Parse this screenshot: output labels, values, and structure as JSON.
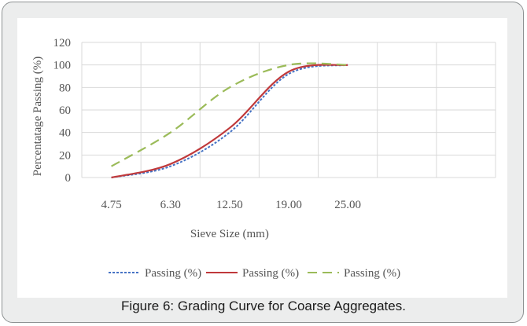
{
  "caption": "Figure 6: Grading Curve for Coarse Aggregates.",
  "chart_data": {
    "type": "line",
    "xlabel": "Sieve Size (mm)",
    "ylabel": "Percentatage Passing (%)",
    "categories": [
      "4.75",
      "6.30",
      "12.50",
      "19.00",
      "25.00"
    ],
    "ylim": [
      0,
      120
    ],
    "yticks": [
      "0",
      "20",
      "40",
      "60",
      "80",
      "100",
      "120"
    ],
    "grid": true,
    "legend_position": "bottom",
    "series": [
      {
        "name": "Passing (%)",
        "color": "#4472c4",
        "dash": "dotted",
        "values": [
          0,
          10,
          40,
          92,
          100
        ]
      },
      {
        "name": "Passing (%)",
        "color": "#c0393b",
        "dash": "solid",
        "values": [
          0,
          12,
          44,
          94,
          100
        ]
      },
      {
        "name": "Passing (%)",
        "color": "#9bbb59",
        "dash": "dashed",
        "values": [
          10,
          40,
          80,
          100,
          100
        ]
      }
    ]
  }
}
